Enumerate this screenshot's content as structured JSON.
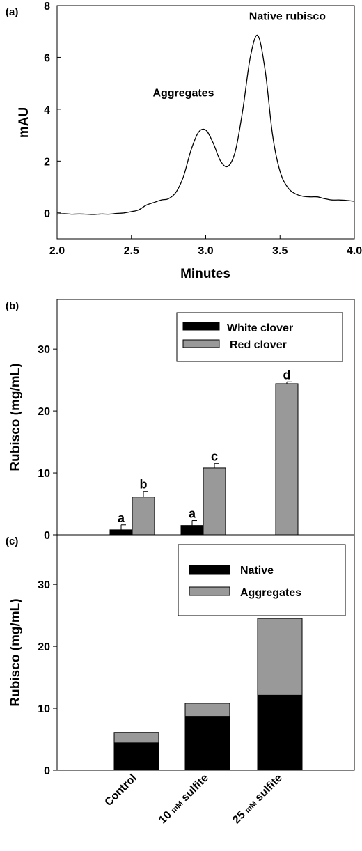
{
  "chart_data": [
    {
      "panel_label": "(a)",
      "type": "line",
      "xlabel": "Minutes",
      "ylabel": "mAU",
      "xlim": [
        2.0,
        4.0
      ],
      "ylim": [
        -1,
        8
      ],
      "x_ticks": [
        "2.0",
        "2.5",
        "3.0",
        "3.5",
        "4.0"
      ],
      "y_ticks": [
        "0",
        "2",
        "4",
        "6",
        "8"
      ],
      "annotations": [
        {
          "text": "Aggregates",
          "x": 2.85,
          "y": 4.5
        },
        {
          "text": "Native rubisco",
          "x": 3.55,
          "y": 7.45
        }
      ],
      "x": [
        2.0,
        2.05,
        2.1,
        2.15,
        2.2,
        2.25,
        2.3,
        2.35,
        2.4,
        2.45,
        2.5,
        2.55,
        2.6,
        2.65,
        2.7,
        2.75,
        2.8,
        2.85,
        2.9,
        2.95,
        3.0,
        3.05,
        3.1,
        3.15,
        3.2,
        3.25,
        3.3,
        3.35,
        3.4,
        3.45,
        3.5,
        3.55,
        3.6,
        3.65,
        3.7,
        3.75,
        3.8,
        3.85,
        3.9,
        3.95,
        4.0
      ],
      "y": [
        -0.05,
        -0.03,
        -0.05,
        -0.04,
        -0.05,
        -0.06,
        -0.04,
        -0.05,
        -0.02,
        0.0,
        0.05,
        0.12,
        0.3,
        0.4,
        0.5,
        0.55,
        0.8,
        1.4,
        2.4,
        3.1,
        3.2,
        2.7,
        2.0,
        1.8,
        2.4,
        4.0,
        6.0,
        6.85,
        5.5,
        3.0,
        1.6,
        1.0,
        0.75,
        0.65,
        0.62,
        0.62,
        0.55,
        0.5,
        0.5,
        0.48,
        0.45
      ]
    },
    {
      "panel_label": "(b)",
      "type": "bar",
      "ylabel": "Rubisco (mg/mL)",
      "ylim": [
        0,
        38
      ],
      "y_ticks": [
        "0",
        "10",
        "20",
        "30"
      ],
      "categories": [
        "Control",
        "10 mM sulfite",
        "25 mM sulfite"
      ],
      "series": [
        {
          "name": "White clover",
          "color": "#000000",
          "values": [
            0.8,
            1.5,
            null
          ],
          "errors": [
            0.8,
            0.8,
            null
          ],
          "letters": [
            "a",
            "a",
            ""
          ]
        },
        {
          "name": "Red clover",
          "color": "#999999",
          "values": [
            6.1,
            10.8,
            24.4
          ],
          "errors": [
            0.9,
            0.7,
            0.3
          ],
          "letters": [
            "b",
            "c",
            "d"
          ]
        }
      ],
      "legend_position": "top-right"
    },
    {
      "panel_label": "(c)",
      "type": "bar",
      "stacked": true,
      "ylabel": "Rubisco (mg/mL)",
      "ylim": [
        0,
        38
      ],
      "y_ticks": [
        "0",
        "10",
        "20",
        "30"
      ],
      "categories": [
        "Control",
        "10 mM sulfite",
        "25 mM sulfite"
      ],
      "series": [
        {
          "name": "Native",
          "color": "#000000",
          "values": [
            4.4,
            8.7,
            12.1
          ]
        },
        {
          "name": "Aggregates",
          "color": "#999999",
          "values": [
            1.7,
            2.1,
            12.4
          ]
        }
      ],
      "legend_position": "top-right"
    }
  ],
  "x_category_labels": [
    {
      "num": "10 ",
      "unit": "mM",
      "rest": " sulfite"
    },
    {
      "num": "25 ",
      "unit": "mM",
      "rest": " sulfite"
    }
  ]
}
